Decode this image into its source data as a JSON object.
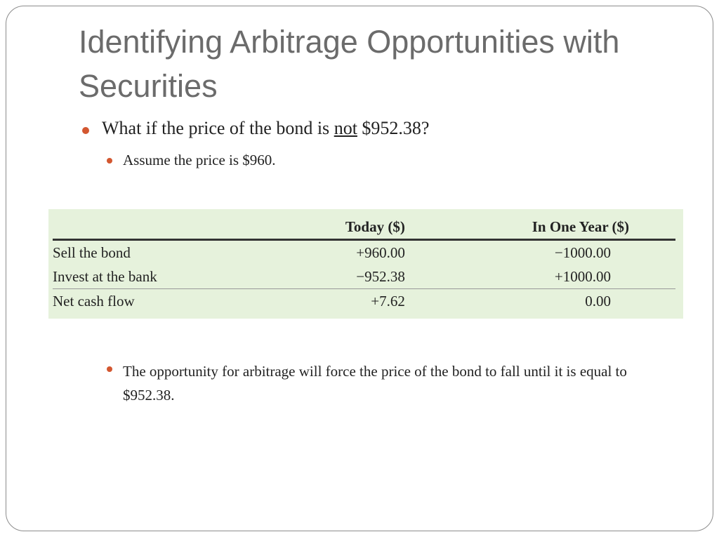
{
  "slide": {
    "title": "Identifying Arbitrage Opportunities with Securities",
    "bullet1": {
      "prefix": "What if the price of the bond is ",
      "emphasis": "not",
      "suffix": " $952.38?"
    },
    "bullet2": "Assume the price is $960.",
    "bullet3": "The opportunity for arbitrage will force the price of the bond to fall until it is equal to $952.38.",
    "accent_color": "#d35730",
    "table_bg": "#e6f2dc"
  },
  "table": {
    "headers": [
      "",
      "Today ($)",
      "In One Year ($)"
    ],
    "rows": [
      {
        "label": "Sell the bond",
        "today": "+960.00",
        "year": "−1000.00"
      },
      {
        "label": "Invest at the bank",
        "today": "−952.38",
        "year": "+1000.00"
      },
      {
        "label": "Net cash flow",
        "today": "+7.62",
        "year": "0.00"
      }
    ]
  }
}
